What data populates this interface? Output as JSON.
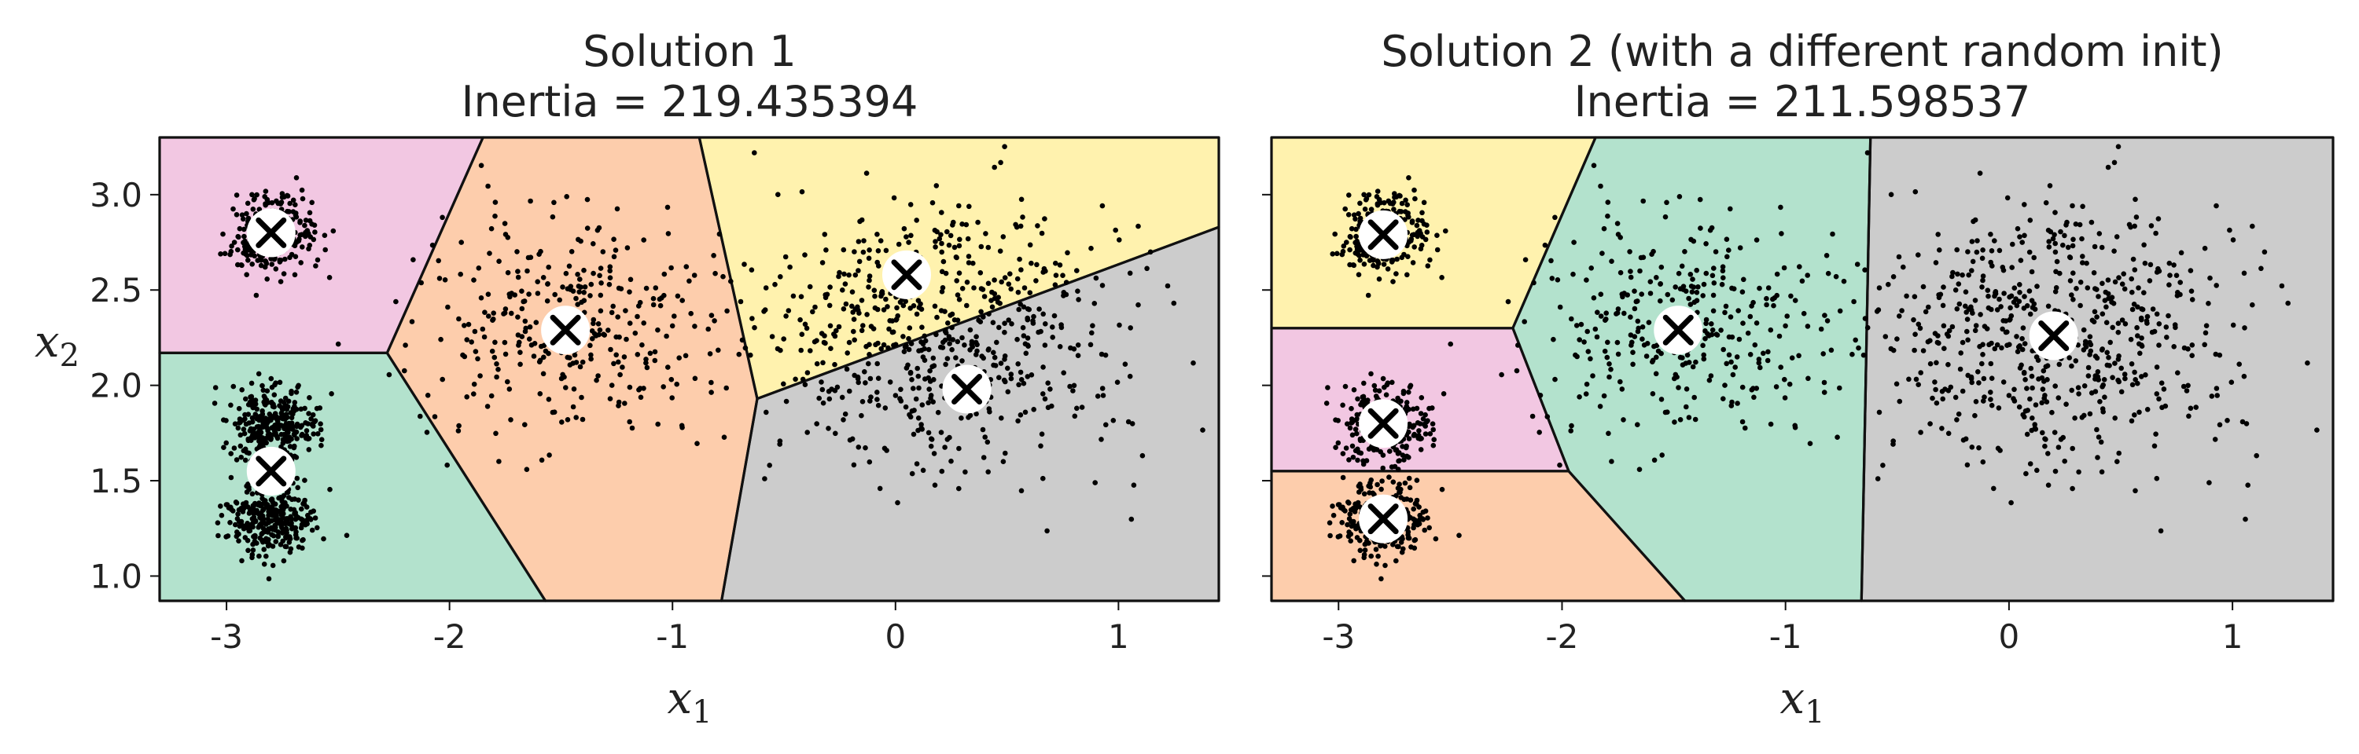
{
  "chart_data": [
    {
      "type": "scatter",
      "title": "Solution 1",
      "subtitle": "Inertia = 219.435394",
      "xlabel": "x",
      "xlabel_sub": "1",
      "ylabel": "x",
      "ylabel_sub": "2",
      "xlim": [
        -3.3,
        1.45
      ],
      "ylim": [
        0.87,
        3.3
      ],
      "xticks": [
        -3,
        -2,
        -1,
        0,
        1
      ],
      "xtick_labels": [
        "-3",
        "-2",
        "-1",
        "0",
        "1"
      ],
      "yticks": [
        1.0,
        1.5,
        2.0,
        2.5,
        3.0
      ],
      "ytick_labels": [
        "1.0",
        "1.5",
        "2.0",
        "2.5",
        "3.0"
      ],
      "grid": false,
      "regions": [
        {
          "color": "#f2c7e2",
          "polygon": [
            [
              -3.3,
              3.3
            ],
            [
              -1.85,
              3.3
            ],
            [
              -2.28,
              2.17
            ],
            [
              -3.3,
              2.17
            ]
          ]
        },
        {
          "color": "#b3e2cd",
          "polygon": [
            [
              -3.3,
              2.17
            ],
            [
              -2.28,
              2.17
            ],
            [
              -1.57,
              0.87
            ],
            [
              -3.3,
              0.87
            ]
          ]
        },
        {
          "color": "#fdcdac",
          "polygon": [
            [
              -1.85,
              3.3
            ],
            [
              -0.88,
              3.3
            ],
            [
              -0.62,
              1.93
            ],
            [
              -0.78,
              0.87
            ],
            [
              -1.57,
              0.87
            ],
            [
              -2.28,
              2.17
            ]
          ]
        },
        {
          "color": "#fff2ae",
          "polygon": [
            [
              -0.88,
              3.3
            ],
            [
              1.45,
              3.3
            ],
            [
              1.45,
              2.83
            ],
            [
              -0.62,
              1.93
            ]
          ]
        },
        {
          "color": "#cccccc",
          "polygon": [
            [
              -0.62,
              1.93
            ],
            [
              1.45,
              2.83
            ],
            [
              1.45,
              0.87
            ],
            [
              -0.78,
              0.87
            ]
          ]
        }
      ],
      "centroids": [
        [
          -2.8,
          2.8
        ],
        [
          -2.8,
          1.55
        ],
        [
          -1.48,
          2.29
        ],
        [
          0.05,
          2.58
        ],
        [
          0.32,
          1.98
        ]
      ],
      "clusters": [
        {
          "center": [
            -2.8,
            2.8
          ],
          "std": [
            0.1,
            0.1
          ],
          "count": 280
        },
        {
          "center": [
            -2.8,
            1.79
          ],
          "std": [
            0.1,
            0.1
          ],
          "count": 300
        },
        {
          "center": [
            -2.8,
            1.3
          ],
          "std": [
            0.1,
            0.1
          ],
          "count": 300
        },
        {
          "center": [
            -1.46,
            2.3
          ],
          "std": [
            0.35,
            0.3
          ],
          "count": 340
        },
        {
          "center": [
            0.2,
            2.28
          ],
          "std": [
            0.4,
            0.35
          ],
          "count": 620
        }
      ]
    },
    {
      "type": "scatter",
      "title": "Solution 2 (with a different random init)",
      "subtitle": "Inertia = 211.598537",
      "xlabel": "x",
      "xlabel_sub": "1",
      "ylabel": "",
      "ylabel_sub": "",
      "xlim": [
        -3.3,
        1.45
      ],
      "ylim": [
        0.87,
        3.3
      ],
      "xticks": [
        -3,
        -2,
        -1,
        0,
        1
      ],
      "xtick_labels": [
        "-3",
        "-2",
        "-1",
        "0",
        "1"
      ],
      "yticks": [
        1.0,
        1.5,
        2.0,
        2.5,
        3.0
      ],
      "ytick_labels": [],
      "grid": false,
      "regions": [
        {
          "color": "#fff2ae",
          "polygon": [
            [
              -3.3,
              3.3
            ],
            [
              -1.85,
              3.3
            ],
            [
              -2.22,
              2.3
            ],
            [
              -3.3,
              2.3
            ]
          ]
        },
        {
          "color": "#f2c7e2",
          "polygon": [
            [
              -3.3,
              2.3
            ],
            [
              -2.22,
              2.3
            ],
            [
              -1.97,
              1.55
            ],
            [
              -3.3,
              1.55
            ]
          ]
        },
        {
          "color": "#fdcdac",
          "polygon": [
            [
              -3.3,
              1.55
            ],
            [
              -1.97,
              1.55
            ],
            [
              -1.45,
              0.87
            ],
            [
              -3.3,
              0.87
            ]
          ]
        },
        {
          "color": "#b3e2cd",
          "polygon": [
            [
              -1.85,
              3.3
            ],
            [
              -0.62,
              3.3
            ],
            [
              -0.66,
              0.87
            ],
            [
              -1.45,
              0.87
            ],
            [
              -1.97,
              1.55
            ],
            [
              -2.22,
              2.3
            ]
          ]
        },
        {
          "color": "#cccccc",
          "polygon": [
            [
              -0.62,
              3.3
            ],
            [
              1.45,
              3.3
            ],
            [
              1.45,
              0.87
            ],
            [
              -0.66,
              0.87
            ]
          ]
        }
      ],
      "centroids": [
        [
          -2.8,
          2.79
        ],
        [
          -2.8,
          1.8
        ],
        [
          -2.8,
          1.3
        ],
        [
          -1.48,
          2.29
        ],
        [
          0.2,
          2.26
        ]
      ],
      "clusters": [
        {
          "center": [
            -2.8,
            2.8
          ],
          "std": [
            0.1,
            0.1
          ],
          "count": 280
        },
        {
          "center": [
            -2.8,
            1.79
          ],
          "std": [
            0.1,
            0.1
          ],
          "count": 300
        },
        {
          "center": [
            -2.8,
            1.3
          ],
          "std": [
            0.1,
            0.1
          ],
          "count": 300
        },
        {
          "center": [
            -1.46,
            2.3
          ],
          "std": [
            0.35,
            0.3
          ],
          "count": 340
        },
        {
          "center": [
            0.2,
            2.28
          ],
          "std": [
            0.4,
            0.35
          ],
          "count": 620
        }
      ]
    }
  ]
}
